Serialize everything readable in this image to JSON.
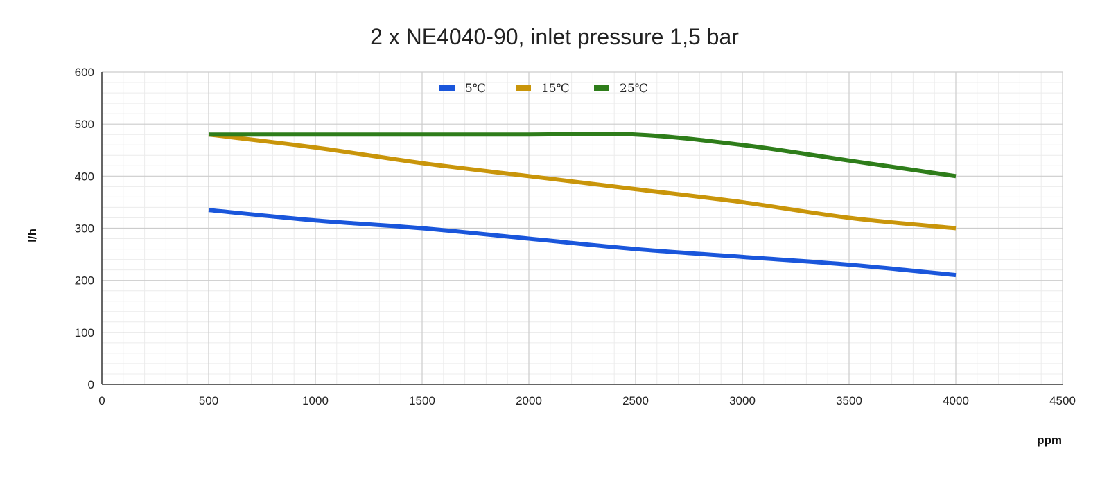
{
  "chart_data": {
    "type": "line",
    "title": "2 x NE4040-90, inlet pressure 1,5 bar",
    "xlabel": "ppm",
    "ylabel": "l/h",
    "xlim": [
      0,
      4500
    ],
    "ylim": [
      0,
      600
    ],
    "x_ticks": [
      0,
      500,
      1000,
      1500,
      2000,
      2500,
      3000,
      3500,
      4000,
      4500
    ],
    "y_ticks": [
      0,
      100,
      200,
      300,
      400,
      500,
      600
    ],
    "x_tick_labels": [
      "0",
      "500",
      "1000",
      "1500",
      "2000",
      "2500",
      "3000",
      "3500",
      "4000",
      "4500"
    ],
    "y_tick_labels": [
      "0",
      "100",
      "200",
      "300",
      "400",
      "500",
      "600"
    ],
    "grid": true,
    "legend_position": "top-center",
    "x": [
      500,
      1000,
      1500,
      2000,
      2500,
      3000,
      3500,
      4000
    ],
    "series": [
      {
        "name": "5℃",
        "color": "#1a56db",
        "values": [
          335,
          315,
          300,
          280,
          260,
          245,
          230,
          210
        ]
      },
      {
        "name": "15℃",
        "color": "#c9950a",
        "values": [
          480,
          455,
          425,
          400,
          375,
          350,
          320,
          300
        ]
      },
      {
        "name": "25℃",
        "color": "#2e7d1a",
        "values": [
          480,
          480,
          480,
          480,
          480,
          460,
          430,
          400
        ]
      }
    ]
  }
}
